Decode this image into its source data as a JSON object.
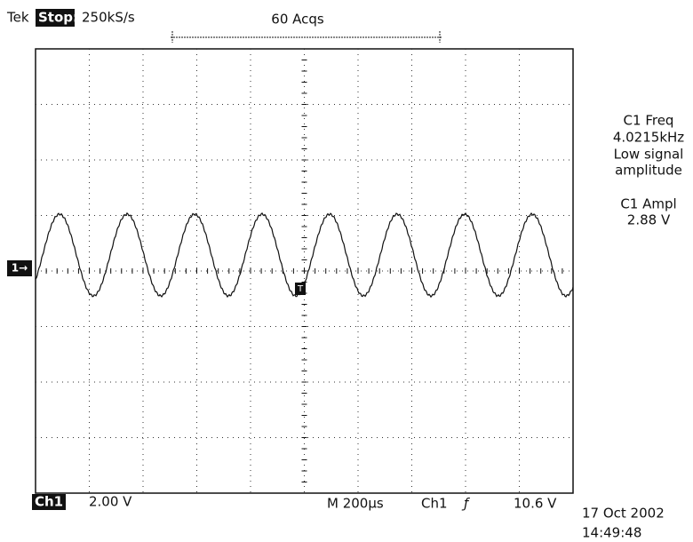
{
  "header": {
    "brand": "Tek",
    "status": "Stop:",
    "sample_rate": "250kS/s",
    "acquisitions": "60 Acqs"
  },
  "channel_marker": "1→",
  "trigger_marker": "T",
  "measurements": [
    {
      "label": "C1 Freq",
      "value": "4.0215kHz",
      "note": [
        "Low signal",
        "amplitude"
      ]
    },
    {
      "label": "C1 Ampl",
      "value": "2.88 V"
    }
  ],
  "footer": {
    "channel": "Ch1",
    "volts_per_div": "2.00 V",
    "timebase": "M 200µs",
    "trigger_source": "Ch1",
    "trigger_slope": "ƒ",
    "trigger_level": "10.6 V",
    "date": "17 Oct 2002",
    "time": "14:49:48"
  }
}
